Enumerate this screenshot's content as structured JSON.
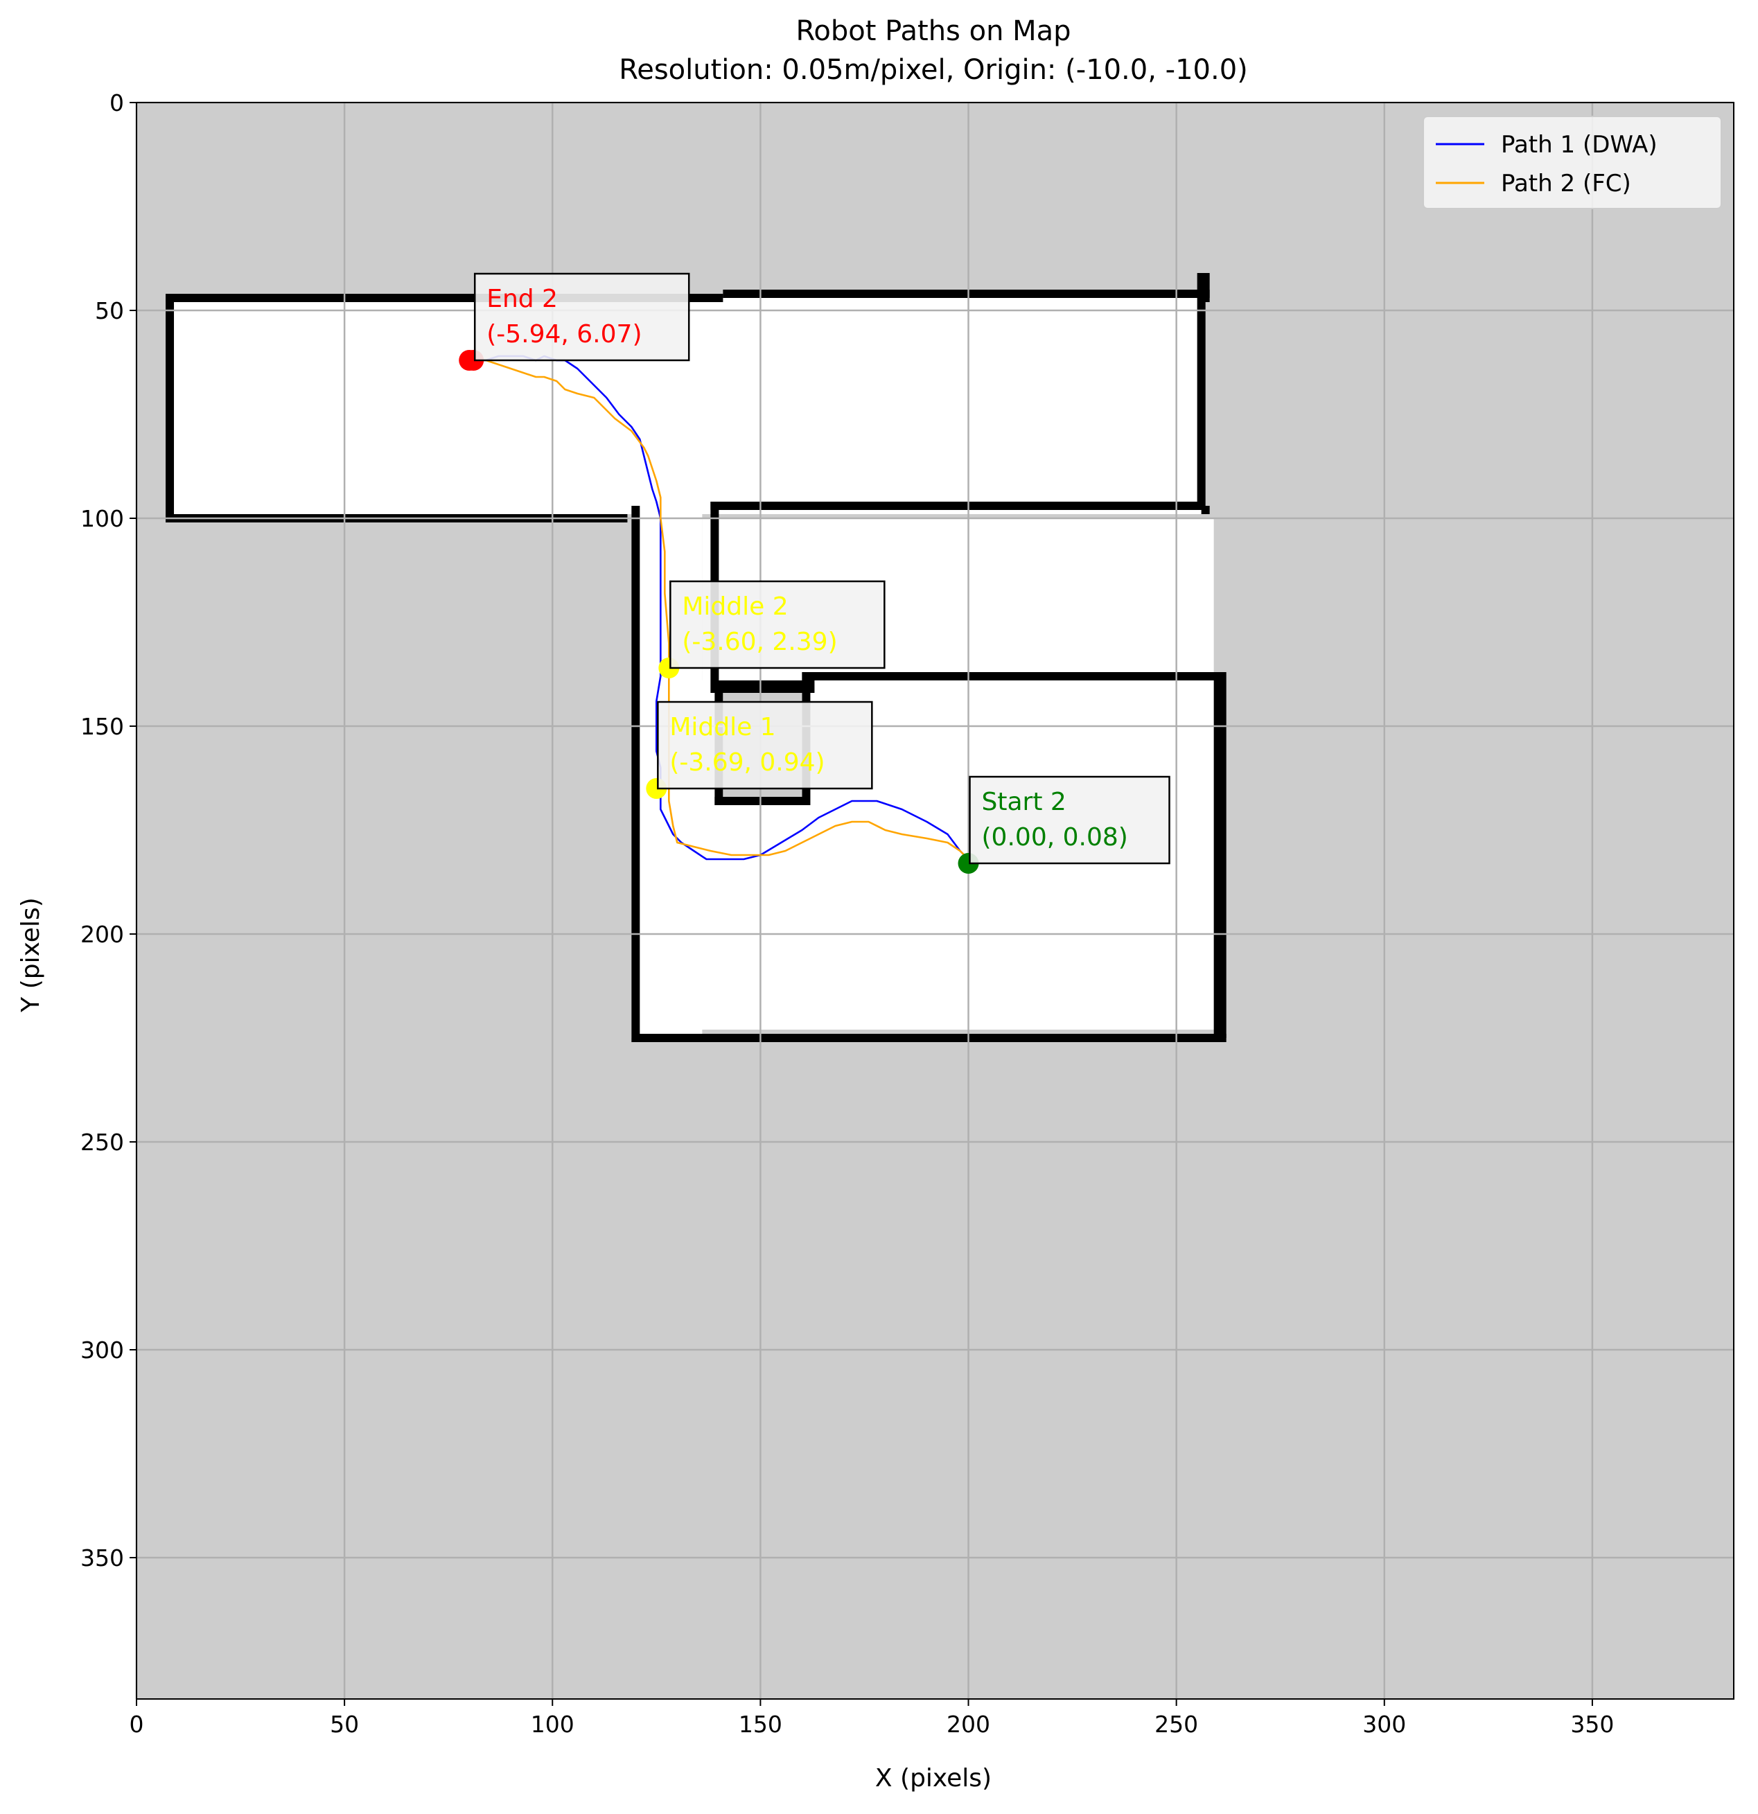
{
  "chart_data": {
    "type": "line",
    "title": "Robot Paths on Map",
    "subtitle": "Resolution: 0.05m/pixel, Origin: (-10.0, -10.0)",
    "xlabel": "X (pixels)",
    "ylabel": "Y (pixels)",
    "xlim": [
      0,
      384
    ],
    "ylim": [
      384,
      0
    ],
    "y_inverted": true,
    "xticks": [
      0,
      50,
      100,
      150,
      200,
      250,
      300,
      350
    ],
    "yticks": [
      0,
      50,
      100,
      150,
      200,
      250,
      300,
      350
    ],
    "grid": true,
    "legend_position": "top-right",
    "background_color": "#cdcdcd",
    "free_space_color": "#ffffff",
    "wall_color": "#000000",
    "map_free_space": [
      [
        8,
        47,
        256,
        99
      ],
      [
        119,
        97,
        136,
        225
      ],
      [
        136,
        100,
        259,
        139
      ],
      [
        120,
        139,
        259,
        223
      ]
    ],
    "map_obstacles": [
      [
        7,
        46,
        141,
        48
      ],
      [
        141,
        45,
        258,
        47
      ],
      [
        256,
        41,
        258,
        48
      ],
      [
        7,
        46,
        9,
        101
      ],
      [
        7,
        99,
        118,
        101
      ],
      [
        116,
        99,
        118,
        101
      ],
      [
        255,
        41,
        257,
        98
      ],
      [
        256,
        97,
        258,
        99
      ],
      [
        119,
        97,
        121,
        226
      ],
      [
        120,
        224,
        262,
        226
      ],
      [
        259,
        137,
        262,
        225
      ],
      [
        138,
        96,
        140,
        139
      ],
      [
        138,
        96,
        256,
        98
      ],
      [
        138,
        139,
        163,
        142
      ],
      [
        160,
        137,
        261,
        139
      ],
      [
        139,
        142,
        141,
        169
      ],
      [
        160,
        137,
        162,
        169
      ],
      [
        139,
        167,
        161,
        169
      ]
    ],
    "obstacle_interior": [
      141,
      142,
      160,
      167
    ],
    "series": [
      {
        "name": "Path 1 (DWA)",
        "color": "#0000ff",
        "x": [
          200,
          198,
          195,
          190,
          184,
          178,
          176,
          172,
          168,
          164,
          160,
          155,
          150,
          146,
          142,
          137,
          134,
          131,
          129,
          128,
          127,
          126,
          126,
          126,
          126,
          125,
          125,
          125,
          126,
          126,
          126,
          126,
          126,
          125,
          124,
          123,
          122,
          121,
          119,
          116,
          113,
          111,
          109,
          106,
          103,
          101,
          98,
          96,
          93,
          90,
          87,
          84,
          82,
          80
        ],
        "y": [
          182,
          180,
          176,
          173,
          170,
          168,
          168,
          168,
          170,
          172,
          175,
          178,
          181,
          182,
          182,
          182,
          180,
          178,
          176,
          174,
          172,
          170,
          168,
          166,
          160,
          156,
          150,
          144,
          138,
          132,
          125,
          110,
          100,
          96,
          93,
          89,
          85,
          81,
          78,
          75,
          71,
          69,
          67,
          64,
          62,
          62,
          61,
          62,
          61,
          61,
          61,
          62,
          62,
          62
        ]
      },
      {
        "name": "Path 2 (FC)",
        "color": "#ffa500",
        "x": [
          200,
          198,
          195,
          190,
          184,
          180,
          176,
          172,
          168,
          164,
          160,
          156,
          152,
          148,
          143,
          138,
          134,
          130,
          129,
          128,
          128,
          128,
          128,
          128,
          127,
          127,
          126,
          126,
          125,
          124,
          123,
          122,
          119,
          115,
          112,
          110,
          106,
          103,
          101,
          98,
          96,
          93,
          90,
          87,
          84,
          82,
          80
        ],
        "y": [
          182,
          180,
          178,
          177,
          176,
          175,
          173,
          173,
          174,
          176,
          178,
          180,
          181,
          181,
          181,
          180,
          179,
          178,
          174,
          168,
          160,
          150,
          140,
          130,
          118,
          108,
          100,
          95,
          91,
          88,
          85,
          83,
          79,
          76,
          73,
          71,
          70,
          69,
          67,
          66,
          66,
          65,
          64,
          63,
          62,
          62,
          62
        ]
      }
    ],
    "markers": [
      {
        "x": 200,
        "y": 183,
        "color": "#008000"
      },
      {
        "x": 80,
        "y": 62,
        "color": "#ff0000"
      },
      {
        "x": 81,
        "y": 62,
        "color": "#ff0000"
      },
      {
        "x": 125,
        "y": 165,
        "color": "#ffff00"
      },
      {
        "x": 128,
        "y": 136,
        "color": "#ffff00"
      }
    ],
    "annotations": [
      {
        "label": "Start 2",
        "coords": "(0.00, 0.08)",
        "color": "#008000",
        "anchor": [
          200,
          183
        ],
        "dx": 200,
        "dy": -160
      },
      {
        "label": "End 2",
        "coords": "(-5.94, 6.07)",
        "color": "#ff0000",
        "anchor": [
          81,
          62
        ],
        "dx": 80,
        "dy": -158
      },
      {
        "label": "Middle 1",
        "coords": "(-3.69, 0.94)",
        "color": "#ffff00",
        "anchor": [
          125,
          165
        ],
        "dx": 125,
        "dy": -163
      },
      {
        "label": "Middle 2",
        "coords": "(-3.60, 2.39)",
        "color": "#ffff00",
        "anchor": [
          128,
          136
        ],
        "dx": 128,
        "dy": -162
      }
    ]
  }
}
